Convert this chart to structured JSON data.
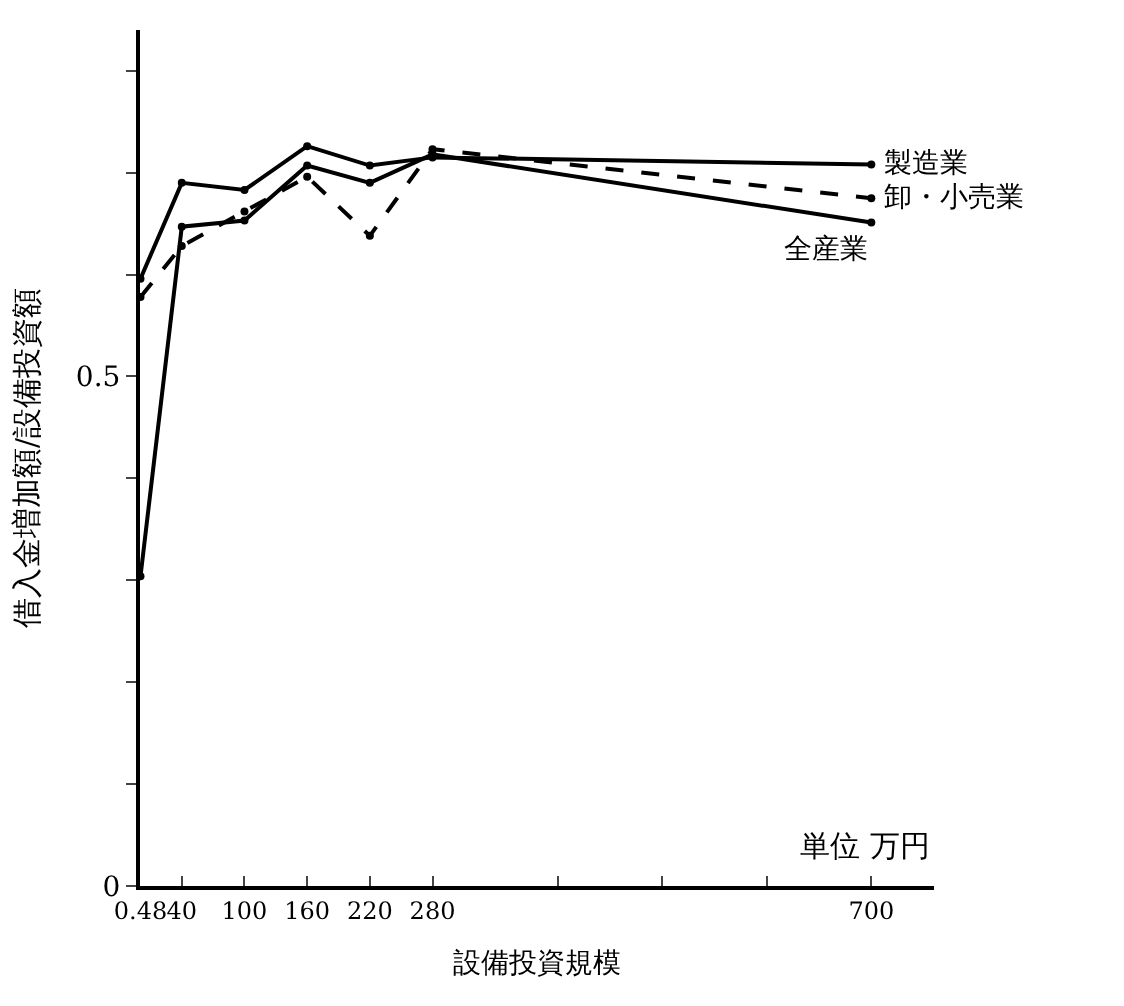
{
  "chart_data": {
    "type": "line",
    "xlabel": "設備投資規模",
    "ylabel": "借入金増加額/設備投資額",
    "annotations": [
      "単位 万円"
    ],
    "x": [
      0.48,
      40,
      100,
      160,
      220,
      280,
      700
    ],
    "series": [
      {
        "name": "製造業",
        "color": "#000000",
        "line_style": "solid",
        "values": [
          0.596,
          0.69,
          0.683,
          0.726,
          0.707,
          0.715,
          0.708
        ]
      },
      {
        "name": "卸・小売業",
        "color": "#000000",
        "line_style": "dashed",
        "values": [
          0.578,
          0.628,
          0.662,
          0.696,
          0.638,
          0.723,
          0.675
        ]
      },
      {
        "name": "全産業",
        "color": "#000000",
        "line_style": "solid",
        "values": [
          0.304,
          0.647,
          0.653,
          0.707,
          0.69,
          0.718,
          0.651
        ]
      }
    ],
    "xlim": [
      0,
      760
    ],
    "ylim": [
      0,
      0.84
    ],
    "xticks": [
      {
        "value": 0.48,
        "label": "0.48"
      },
      40,
      100,
      160,
      220,
      280,
      {
        "value": 400,
        "label": null
      },
      {
        "value": 500,
        "label": null
      },
      {
        "value": 600,
        "label": null
      },
      700
    ],
    "yticks": [
      0,
      {
        "value": 0.1,
        "label": null
      },
      {
        "value": 0.2,
        "label": null
      },
      {
        "value": 0.3,
        "label": null
      },
      {
        "value": 0.4,
        "label": null
      },
      0.5,
      {
        "value": 0.6,
        "label": null
      },
      {
        "value": 0.7,
        "label": null
      },
      {
        "value": 0.8,
        "label": null
      }
    ],
    "marker": "circle",
    "legend": false
  }
}
